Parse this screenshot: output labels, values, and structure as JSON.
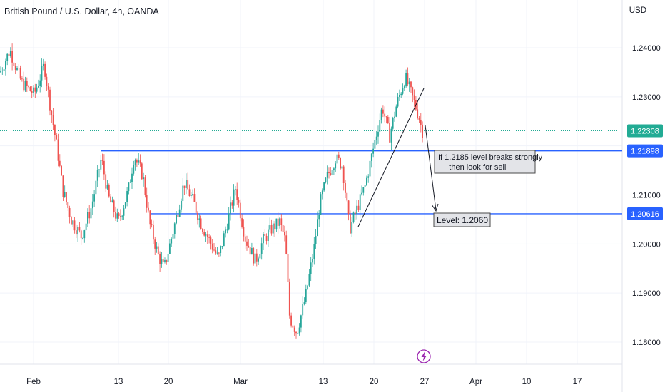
{
  "header": {
    "symbol_title": "British Pound / U.S. Dollar, 4h, OANDA",
    "currency": "USD"
  },
  "colors": {
    "up": "#26a69a",
    "down": "#ef5350",
    "level_line": "#2962ff",
    "last_price_badge": "#22ab94",
    "level_badge": "#2962ff",
    "grid": "#f0f3fa",
    "axis_text": "#131722",
    "event_icon": "#9c27b0"
  },
  "annotations": {
    "callout_text": "If 1.2185 level breaks strongly\n     then look for sell",
    "target_text": "Level: 1.2060"
  },
  "chart_data": {
    "type": "candlestick",
    "title": "British Pound / U.S. Dollar, 4h, OANDA",
    "y_axis_label": "USD",
    "ylim": [
      1.1775,
      1.2475
    ],
    "y_ticks": [
      "1.24000",
      "1.23000",
      "1.21000",
      "1.20000",
      "1.19000",
      "1.18000"
    ],
    "x_ticks": [
      "Feb",
      "13",
      "20",
      "Mar",
      "13",
      "20",
      "27",
      "Apr",
      "10",
      "17"
    ],
    "last_price": {
      "value": 1.22308,
      "label": "1.22308"
    },
    "horizontal_levels": [
      {
        "value": 1.21898,
        "label": "1.21898"
      },
      {
        "value": 1.20616,
        "label": "1.20616"
      }
    ],
    "grid": true,
    "price_path": [
      {
        "x": "Feb",
        "y": 1.235
      },
      {
        "x": "Feb",
        "y": 1.2395
      },
      {
        "x": "13",
        "y": 1.2015
      },
      {
        "x": "13",
        "y": 1.2185
      },
      {
        "x": "20",
        "y": 1.1935
      },
      {
        "x": "20",
        "y": 1.2135
      },
      {
        "x": "Mar",
        "y": 1.1985
      },
      {
        "x": "Mar",
        "y": 1.2045
      },
      {
        "x": "13",
        "y": 1.181
      },
      {
        "x": "13",
        "y": 1.2175
      },
      {
        "x": "20",
        "y": 1.206
      },
      {
        "x": "20",
        "y": 1.228
      },
      {
        "x": "27",
        "y": 1.2335
      },
      {
        "x": "27",
        "y": 1.223
      }
    ]
  }
}
